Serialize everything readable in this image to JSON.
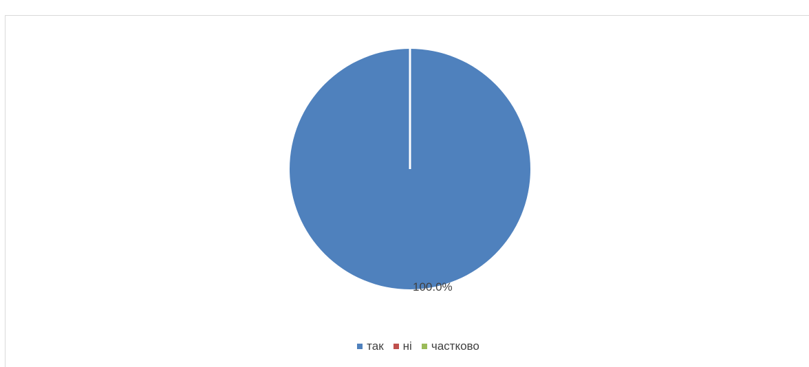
{
  "heading_clipped": "",
  "chart_data": {
    "type": "pie",
    "title": "",
    "slices": [
      {
        "label": "так",
        "value": 100.0,
        "color": "#4F81BD"
      },
      {
        "label": "ні",
        "value": 0.0,
        "color": "#C0504D"
      },
      {
        "label": "частково",
        "value": 0.0,
        "color": "#9BBB59"
      }
    ],
    "data_labels": [
      "100.0%"
    ],
    "legend_position": "bottom"
  }
}
